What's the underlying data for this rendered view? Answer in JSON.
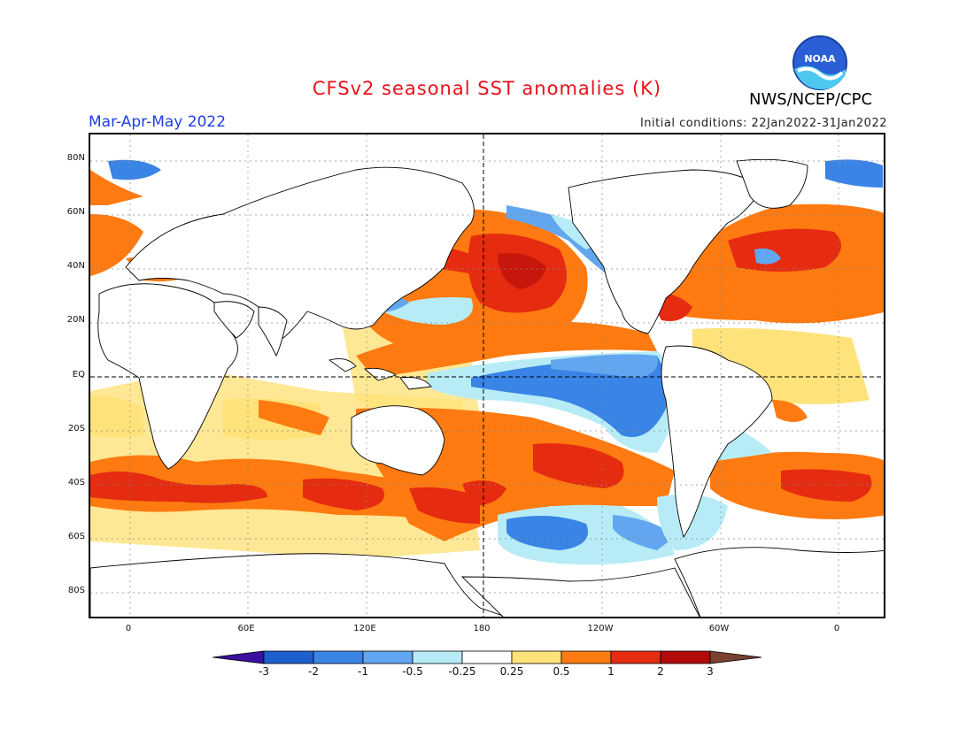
{
  "title": "CFSv2 seasonal SST anomalies (K)",
  "period": "Mar-Apr-May 2022",
  "initial_conditions": "Initial conditions: 22Jan2022-31Jan2022",
  "agency": "NWS/NCEP/CPC",
  "logo_text": "NOAA",
  "lat_labels": [
    "80N",
    "60N",
    "40N",
    "20N",
    "EQ",
    "20S",
    "40S",
    "60S",
    "80S"
  ],
  "lon_labels": [
    "0",
    "60E",
    "120E",
    "180",
    "120W",
    "60W",
    "0"
  ],
  "colorbar": {
    "labels": [
      "-3",
      "-2",
      "-1",
      "-0.5",
      "-0.25",
      "0.25",
      "0.5",
      "1",
      "2",
      "3"
    ],
    "colors": [
      "#3b0fa0",
      "#1d5fcf",
      "#3a84e6",
      "#63a6f0",
      "#b7ecf7",
      "#ffffff",
      "#ffe27a",
      "#ff7a10",
      "#e52b10",
      "#b30a0a",
      "#7a4030"
    ]
  },
  "colors": {
    "title": "#e8101a",
    "period": "#2040e0",
    "warm_strong": "#e52b10",
    "warm": "#ff7a10",
    "warm_weak": "#ffe27a",
    "cool_weak": "#b7ecf7",
    "cool": "#63a6f0",
    "cool_strong": "#3a84e6"
  }
}
